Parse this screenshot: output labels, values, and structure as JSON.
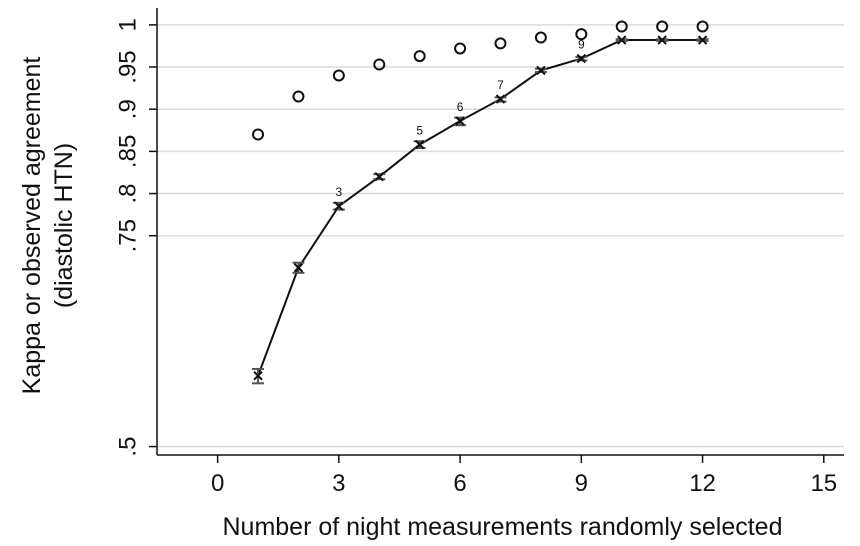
{
  "chart_data": {
    "type": "line",
    "title": "",
    "xlabel": "Number of night measurements randomly selected",
    "ylabel_line1": "Kappa or observed agreement",
    "ylabel_line2": "(diastolic HTN)",
    "xlim": [
      -1.5,
      15.5
    ],
    "ylim": [
      0.49,
      1.02
    ],
    "x_ticks": [
      {
        "value": 0,
        "label": "0"
      },
      {
        "value": 3,
        "label": "3"
      },
      {
        "value": 6,
        "label": "6"
      },
      {
        "value": 9,
        "label": "9"
      },
      {
        "value": 12,
        "label": "12"
      },
      {
        "value": 15,
        "label": "15"
      }
    ],
    "y_ticks": [
      {
        "value": 0.5,
        "label": ".5"
      },
      {
        "value": 0.75,
        "label": ".75"
      },
      {
        "value": 0.8,
        "label": ".8"
      },
      {
        "value": 0.85,
        "label": ".85"
      },
      {
        "value": 0.9,
        "label": ".9"
      },
      {
        "value": 0.95,
        "label": ".95"
      },
      {
        "value": 1.0,
        "label": "1"
      }
    ],
    "grid": true,
    "series": [
      {
        "marker": "x",
        "line": true,
        "error_bars": true,
        "x": [
          1,
          2,
          3,
          4,
          5,
          6,
          7,
          8,
          9,
          10,
          11,
          12
        ],
        "y": [
          0.584,
          0.712,
          0.785,
          0.82,
          0.858,
          0.886,
          0.912,
          0.946,
          0.96,
          0.982,
          0.982,
          0.982
        ],
        "err_low": [
          0.575,
          0.706,
          0.781,
          0.817,
          0.854,
          0.881,
          0.909,
          0.944,
          0.958,
          0.981,
          0.981,
          0.981
        ],
        "err_high": [
          0.592,
          0.718,
          0.789,
          0.823,
          0.862,
          0.89,
          0.914,
          0.948,
          0.962,
          0.983,
          0.983,
          0.983
        ],
        "point_labels": [
          "",
          "",
          "3",
          "",
          "5",
          "6",
          "7",
          "",
          "9",
          "",
          "",
          ""
        ]
      },
      {
        "marker": "circle",
        "line": false,
        "x": [
          1,
          2,
          3,
          4,
          5,
          6,
          7,
          8,
          9,
          10,
          11,
          12
        ],
        "y": [
          0.87,
          0.915,
          0.94,
          0.953,
          0.963,
          0.972,
          0.978,
          0.985,
          0.989,
          0.998,
          0.998,
          0.998
        ]
      }
    ]
  }
}
